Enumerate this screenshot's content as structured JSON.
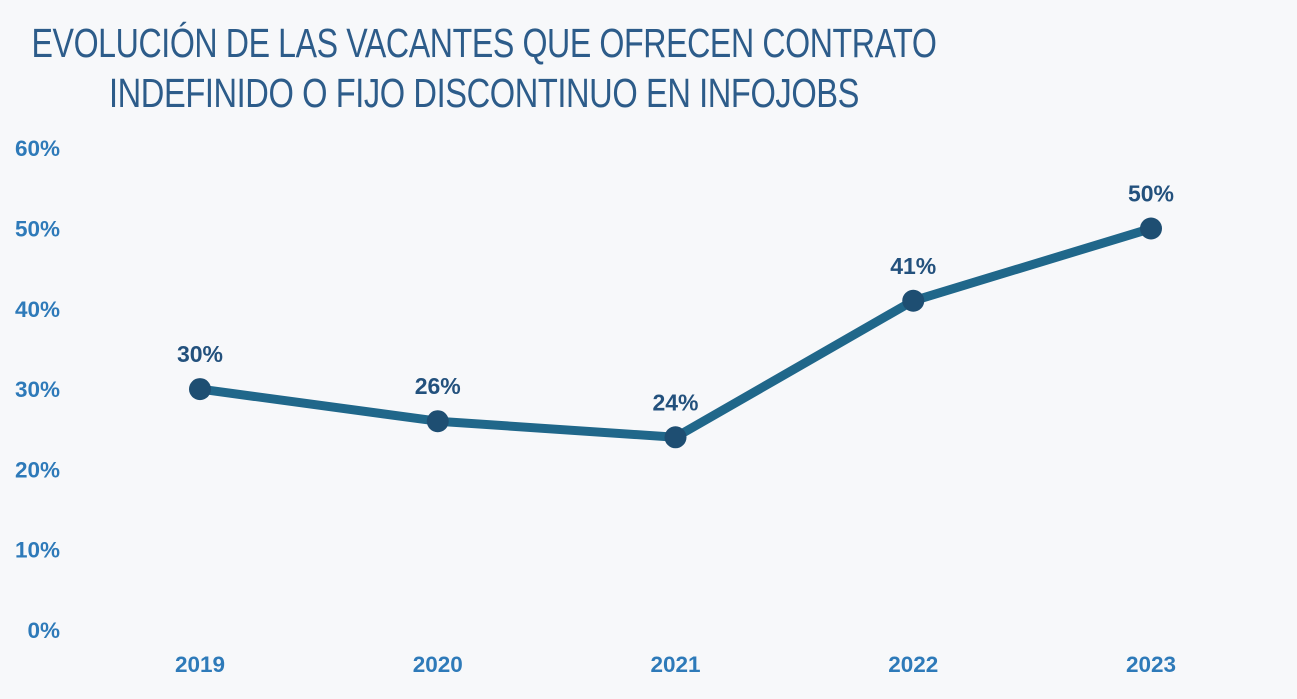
{
  "page": {
    "background_color": "#f7f8fa"
  },
  "chart_data": {
    "type": "line",
    "title": "EVOLUCIÓN DE LAS VACANTES QUE OFRECEN CONTRATO INDEFINIDO O FIJO DISCONTINUO EN INFOJOBS",
    "title_lines": [
      "EVOLUCIÓN DE LAS VACANTES QUE OFRECEN CONTRATO",
      "INDEFINIDO  O FIJO DISCONTINUO EN INFOJOBS"
    ],
    "categories": [
      "2019",
      "2020",
      "2021",
      "2022",
      "2023"
    ],
    "values": [
      30,
      26,
      24,
      41,
      50
    ],
    "point_labels": [
      "30%",
      "26%",
      "24%",
      "41%",
      "50%"
    ],
    "ytick_values": [
      0,
      10,
      20,
      30,
      40,
      50,
      60
    ],
    "ytick_labels": [
      "0%",
      "10%",
      "20%",
      "30%",
      "40%",
      "50%",
      "60%"
    ],
    "ylim": [
      0,
      60
    ],
    "xlabel": "",
    "ylabel": "",
    "grid": false,
    "legend": "none",
    "series_name": "Vacantes con contrato indefinido o fijo discontinuo en InfoJobs",
    "colors": {
      "background": "#f7f8fa",
      "title": "#2d5c8a",
      "axis_labels": "#2e7ab9",
      "point_labels": "#23517d",
      "line": "#20678a",
      "marker": "#1e4e72"
    }
  }
}
